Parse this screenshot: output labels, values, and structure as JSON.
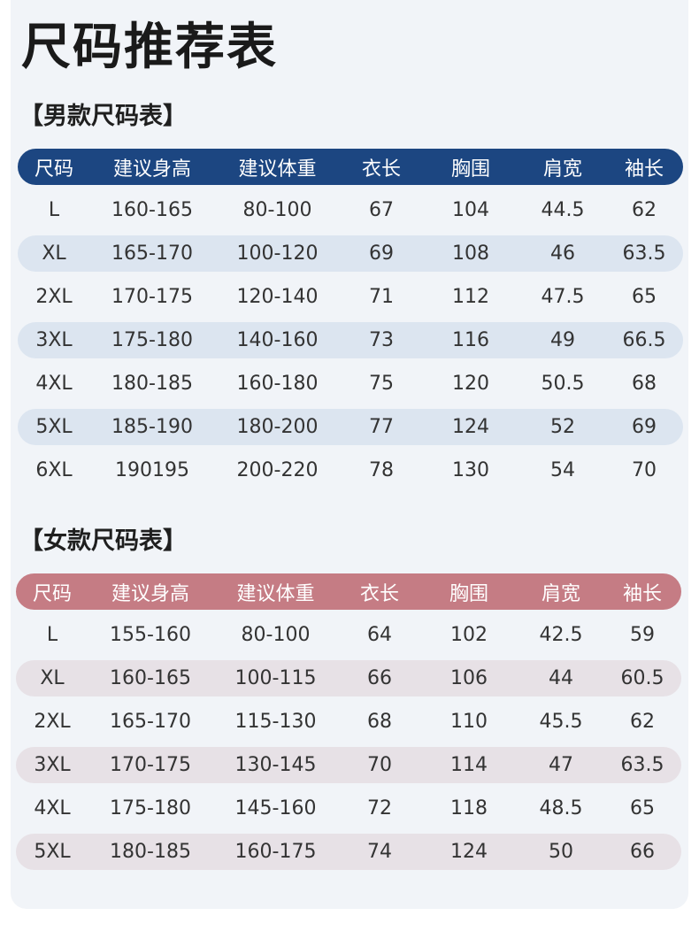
{
  "page_title": "尺码推荐表",
  "men": {
    "section_title": "【男款尺码表】",
    "accent_color": "#1c4681",
    "stripe_color": "#dce5f0",
    "headers": [
      "尺码",
      "建议身高",
      "建议体重",
      "衣长",
      "胸围",
      "肩宽",
      "袖长"
    ],
    "rows": [
      [
        "L",
        "160-165",
        "80-100",
        "67",
        "104",
        "44.5",
        "62"
      ],
      [
        "XL",
        "165-170",
        "100-120",
        "69",
        "108",
        "46",
        "63.5"
      ],
      [
        "2XL",
        "170-175",
        "120-140",
        "71",
        "112",
        "47.5",
        "65"
      ],
      [
        "3XL",
        "175-180",
        "140-160",
        "73",
        "116",
        "49",
        "66.5"
      ],
      [
        "4XL",
        "180-185",
        "160-180",
        "75",
        "120",
        "50.5",
        "68"
      ],
      [
        "5XL",
        "185-190",
        "180-200",
        "77",
        "124",
        "52",
        "69"
      ],
      [
        "6XL",
        "190195",
        "200-220",
        "78",
        "130",
        "54",
        "70"
      ]
    ]
  },
  "women": {
    "section_title": "【女款尺码表】",
    "accent_color": "#c57c84",
    "stripe_color": "#e7e1e6",
    "headers": [
      "尺码",
      "建议身高",
      "建议体重",
      "衣长",
      "胸围",
      "肩宽",
      "袖长"
    ],
    "rows": [
      [
        "L",
        "155-160",
        "80-100",
        "64",
        "102",
        "42.5",
        "59"
      ],
      [
        "XL",
        "160-165",
        "100-115",
        "66",
        "106",
        "44",
        "60.5"
      ],
      [
        "2XL",
        "165-170",
        "115-130",
        "68",
        "110",
        "45.5",
        "62"
      ],
      [
        "3XL",
        "170-175",
        "130-145",
        "70",
        "114",
        "47",
        "63.5"
      ],
      [
        "4XL",
        "175-180",
        "145-160",
        "72",
        "118",
        "48.5",
        "65"
      ],
      [
        "5XL",
        "180-185",
        "160-175",
        "74",
        "124",
        "50",
        "66"
      ]
    ]
  }
}
